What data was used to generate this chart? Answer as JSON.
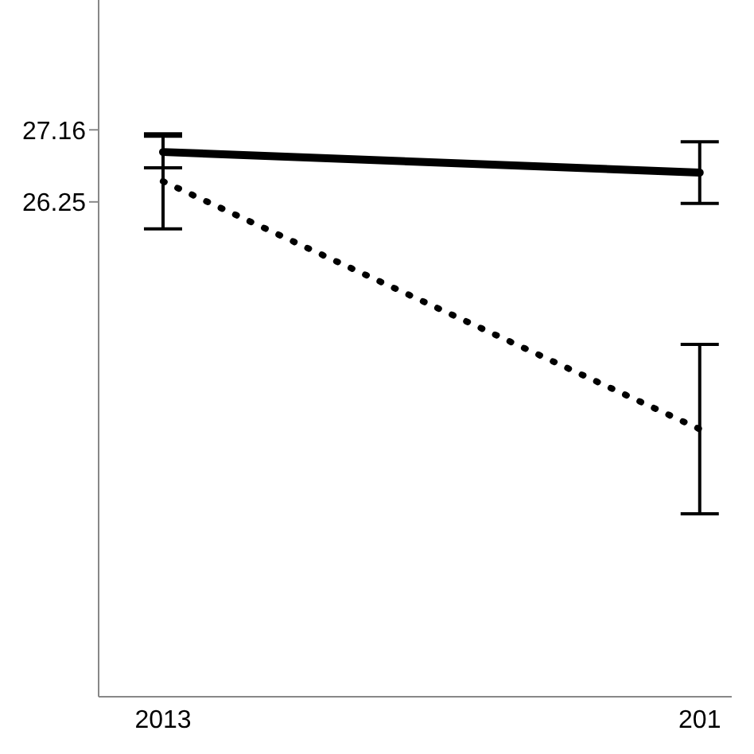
{
  "chart_data": {
    "type": "line",
    "categories": [
      "2013",
      "201"
    ],
    "series": [
      {
        "color": "#000000",
        "line_style": "solid",
        "values": [
          26.88,
          26.62
        ],
        "errors": [
          0.2,
          0.39
        ]
      },
      {
        "color": "#000000",
        "line_style": "dotted",
        "values": [
          26.51,
          23.38
        ],
        "errors": [
          0.6,
          1.07
        ]
      }
    ],
    "ylim": [
      20,
      28.8
    ],
    "yticks": [
      26.25,
      27.16
    ],
    "grid": false,
    "marker": "none"
  }
}
